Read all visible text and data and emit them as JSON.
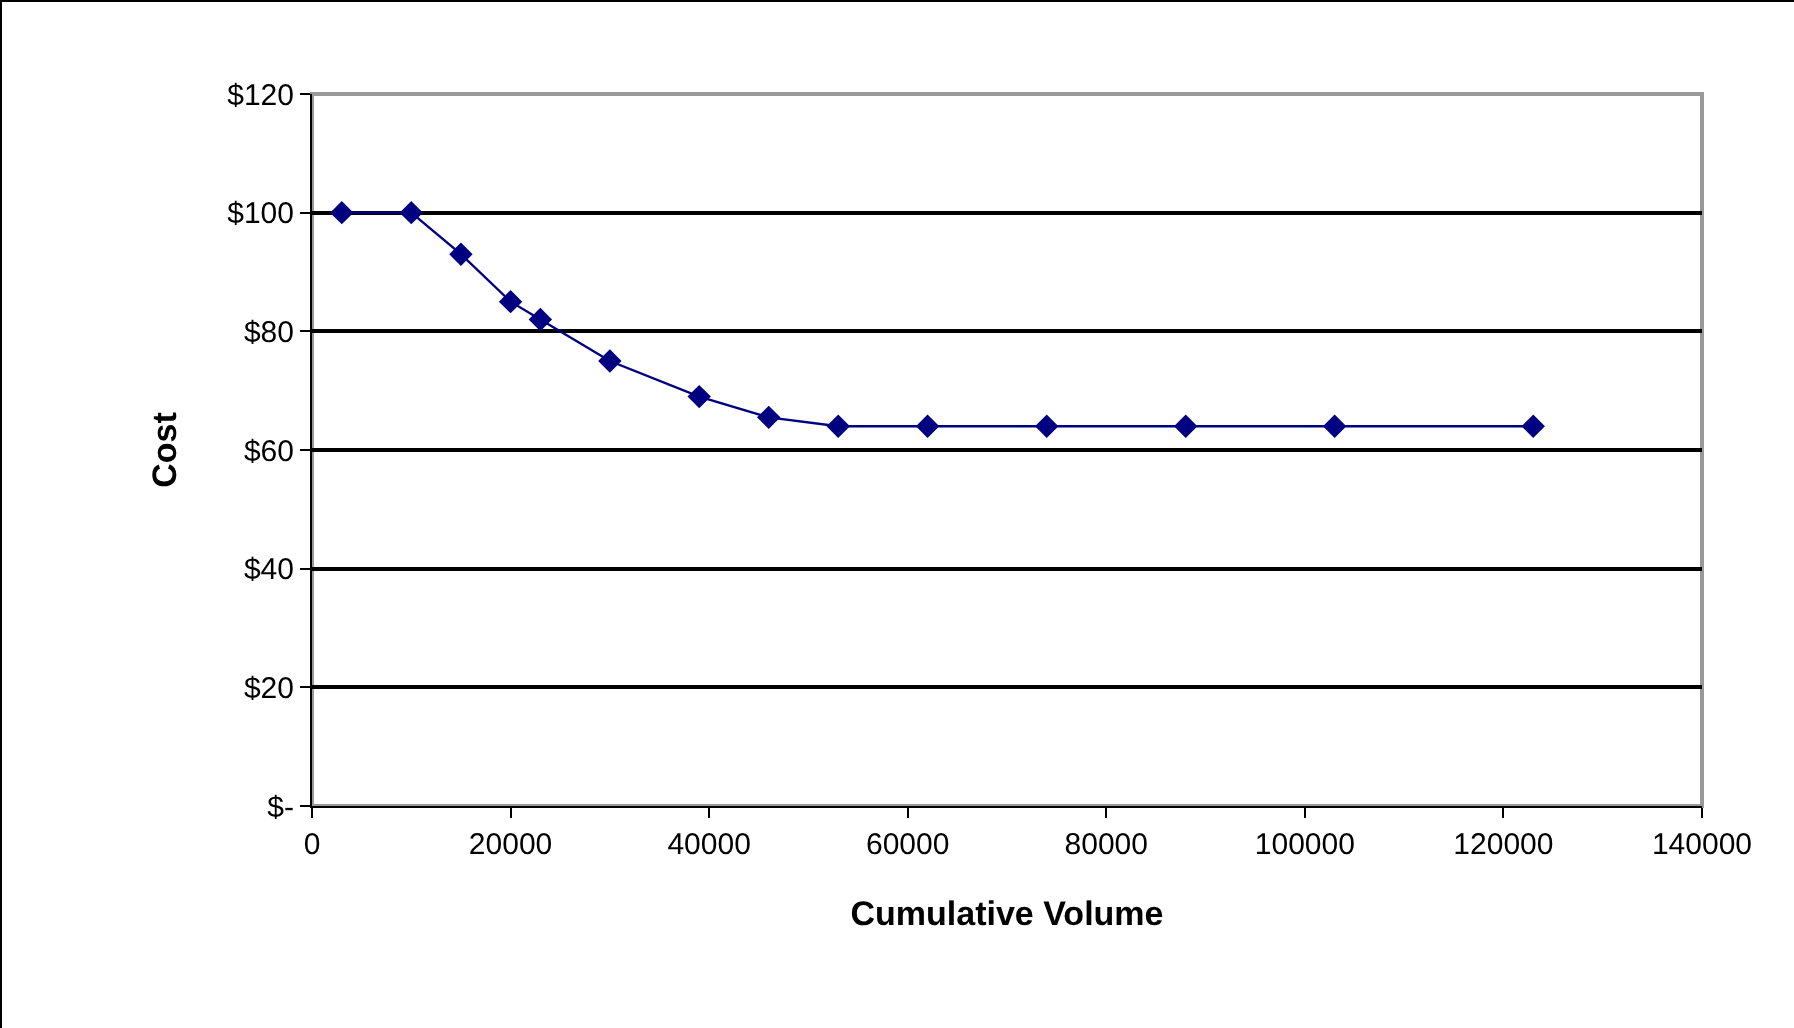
{
  "chart_data": {
    "type": "line",
    "xlabel": "Cumulative Volume",
    "ylabel": "Cost",
    "x": [
      3000,
      10000,
      15000,
      20000,
      23000,
      30000,
      39000,
      46000,
      53000,
      62000,
      74000,
      88000,
      103000,
      123000
    ],
    "series": [
      {
        "color": "#000080",
        "values": [
          100,
          100,
          93,
          85,
          82,
          75,
          69,
          65.5,
          64,
          64,
          64,
          64,
          64,
          64
        ]
      }
    ],
    "xlim": [
      0,
      140000
    ],
    "xticks": [
      0,
      20000,
      40000,
      60000,
      80000,
      100000,
      120000,
      140000
    ],
    "ylim": [
      0,
      120
    ],
    "yticks": [
      {
        "value": 0,
        "label": "$-"
      },
      {
        "value": 20,
        "label": "$20"
      },
      {
        "value": 40,
        "label": "$40"
      },
      {
        "value": 60,
        "label": "$60"
      },
      {
        "value": 80,
        "label": "$80"
      },
      {
        "value": 100,
        "label": "$100"
      },
      {
        "value": 120,
        "label": "$120"
      }
    ],
    "grid": "y",
    "marker": "diamond",
    "line_style": "solid",
    "legend": false
  }
}
